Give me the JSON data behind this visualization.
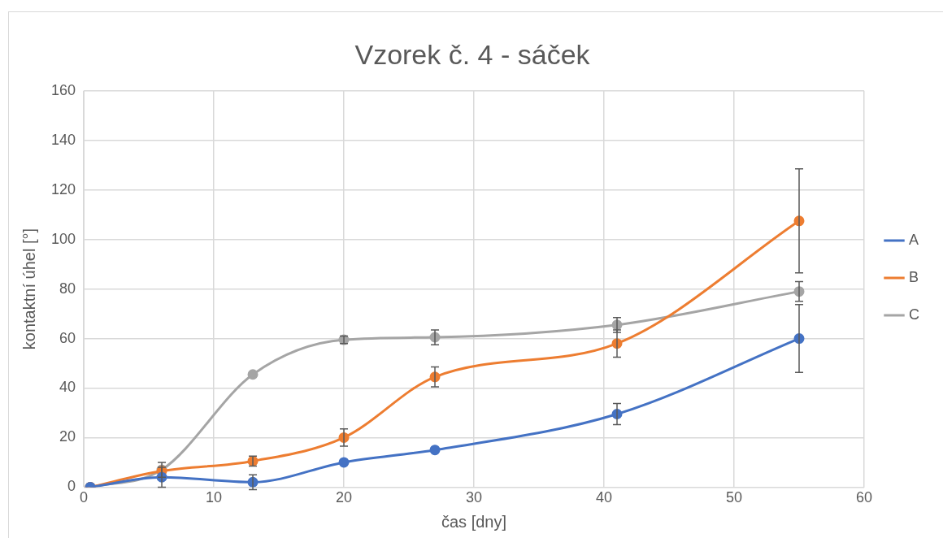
{
  "chart_data": {
    "type": "line",
    "title": "Vzorek č. 4 - sáček",
    "xlabel": "čas [dny]",
    "ylabel": "kontaktní úhel [°]",
    "x": [
      0.5,
      6,
      13,
      20,
      27,
      41,
      55
    ],
    "xlim": [
      0,
      60
    ],
    "xticks": [
      0,
      10,
      20,
      30,
      40,
      50,
      60
    ],
    "ylim": [
      0,
      160
    ],
    "yticks": [
      0,
      20,
      40,
      60,
      80,
      100,
      120,
      140,
      160
    ],
    "grid": true,
    "legend": "right",
    "marker": "circle",
    "series": [
      {
        "name": "A",
        "color": "#4472c4",
        "values": [
          0,
          4,
          2,
          10,
          15,
          29.5,
          60
        ],
        "errors": [
          null,
          4,
          3,
          null,
          null,
          4.3,
          13.7
        ]
      },
      {
        "name": "B",
        "color": "#ed7d31",
        "values": [
          0,
          6.5,
          10.5,
          20,
          44.5,
          58,
          107.5
        ],
        "errors": [
          null,
          null,
          2,
          3.5,
          4,
          5.5,
          21
        ]
      },
      {
        "name": "C",
        "color": "#a5a5a5",
        "values": [
          0,
          7,
          45.5,
          59.5,
          60.5,
          65.5,
          79
        ],
        "errors": [
          null,
          3,
          null,
          1.5,
          3,
          3,
          4
        ]
      }
    ]
  }
}
